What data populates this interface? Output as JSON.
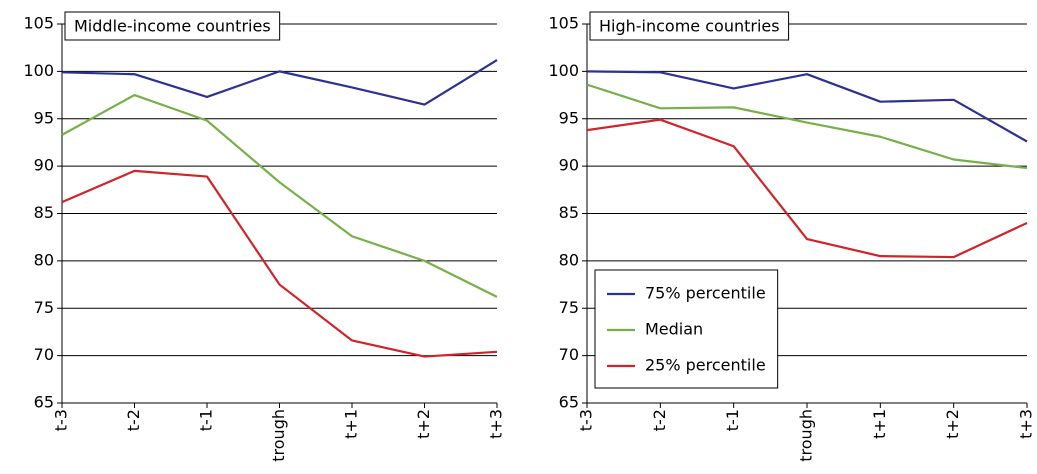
{
  "chart_data": [
    {
      "type": "line",
      "title": "Middle-income countries",
      "categories": [
        "t-3",
        "t-2",
        "t-1",
        "trough",
        "t+1",
        "t+2",
        "t+3"
      ],
      "series": [
        {
          "color": "#2e3192",
          "values": [
            99.9,
            99.7,
            97.3,
            100.0,
            98.3,
            96.5,
            101.2
          ]
        },
        {
          "color": "#77b04a",
          "values": [
            93.3,
            97.5,
            94.8,
            88.3,
            82.6,
            80.0,
            76.2
          ]
        },
        {
          "color": "#d2232a",
          "values": [
            86.2,
            89.5,
            88.9,
            77.5,
            71.6,
            69.9,
            70.4
          ]
        }
      ],
      "ylim": [
        65,
        105
      ],
      "yticks": [
        65,
        70,
        75,
        80,
        85,
        90,
        95,
        100,
        105
      ],
      "grid": true
    },
    {
      "type": "line",
      "title": "High-income countries",
      "categories": [
        "t-3",
        "t-2",
        "t-1",
        "trough",
        "t+1",
        "t+2",
        "t+3"
      ],
      "series": [
        {
          "name": "75% percentile",
          "color": "#2e3192",
          "values": [
            100.0,
            99.9,
            98.2,
            99.7,
            96.8,
            97.0,
            92.6
          ]
        },
        {
          "name": "Median",
          "color": "#77b04a",
          "values": [
            98.6,
            96.1,
            96.2,
            94.6,
            93.1,
            90.7,
            89.8
          ]
        },
        {
          "name": "25% percentile",
          "color": "#d2232a",
          "values": [
            93.8,
            94.9,
            92.1,
            82.3,
            80.5,
            80.4,
            84.0
          ]
        }
      ],
      "ylim": [
        65,
        105
      ],
      "yticks": [
        65,
        70,
        75,
        80,
        85,
        90,
        95,
        100,
        105
      ],
      "grid": true,
      "legend": "lower left"
    }
  ]
}
